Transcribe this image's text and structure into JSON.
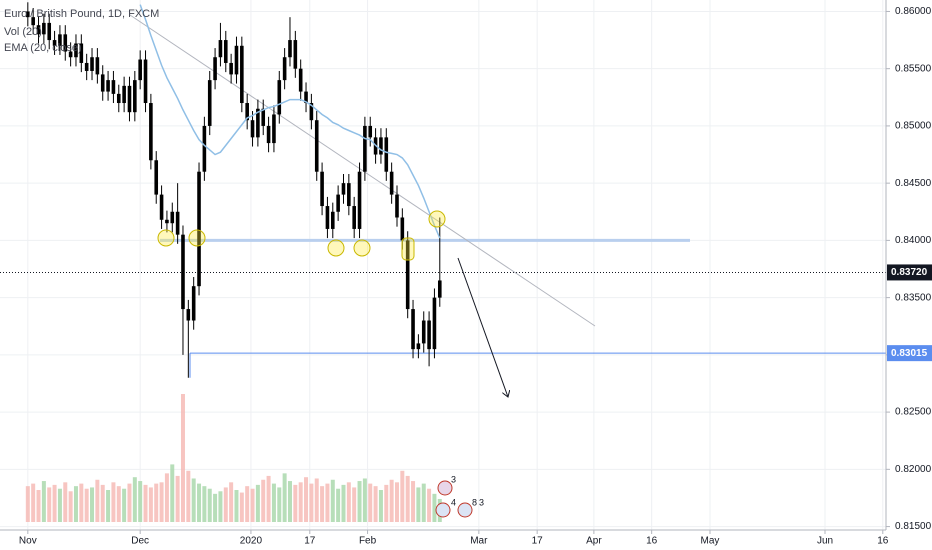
{
  "chart_data": {
    "type": "candlestick",
    "title": "Euro / British Pound, 1D, FXCM",
    "indicators": [
      "Vol (20)",
      "EMA (20, close)"
    ],
    "open": [
      0.86,
      0.8595,
      0.8588,
      0.858,
      0.859,
      0.8575,
      0.857,
      0.858,
      0.8565,
      0.856,
      0.8572,
      0.8555,
      0.8548,
      0.856,
      0.8545,
      0.853,
      0.854,
      0.8528,
      0.852,
      0.8535,
      0.8512,
      0.854,
      0.8558,
      0.852,
      0.847,
      0.844,
      0.8418,
      0.8415,
      0.8425,
      0.8405,
      0.834,
      0.833,
      0.836,
      0.846,
      0.85,
      0.854,
      0.856,
      0.8575,
      0.8555,
      0.8545,
      0.857,
      0.852,
      0.8505,
      0.849,
      0.8515,
      0.85,
      0.8485,
      0.851,
      0.854,
      0.856,
      0.8575,
      0.855,
      0.853,
      0.852,
      0.8505,
      0.846,
      0.843,
      0.841,
      0.8425,
      0.844,
      0.845,
      0.843,
      0.841,
      0.846,
      0.85,
      0.849,
      0.8475,
      0.849,
      0.846,
      0.844,
      0.842,
      0.84,
      0.834,
      0.8305,
      0.831,
      0.833,
      0.8305,
      0.835
    ],
    "high": [
      0.8608,
      0.8603,
      0.8596,
      0.8598,
      0.8598,
      0.8583,
      0.8588,
      0.8588,
      0.8573,
      0.858,
      0.858,
      0.8563,
      0.8568,
      0.8568,
      0.8553,
      0.8548,
      0.8548,
      0.8536,
      0.8543,
      0.8543,
      0.8548,
      0.8566,
      0.8566,
      0.8528,
      0.8478,
      0.8448,
      0.8426,
      0.8433,
      0.845,
      0.8413,
      0.8348,
      0.8368,
      0.8468,
      0.8508,
      0.8548,
      0.8568,
      0.859,
      0.8583,
      0.8563,
      0.8578,
      0.8578,
      0.8528,
      0.8513,
      0.8523,
      0.8523,
      0.8508,
      0.8518,
      0.8548,
      0.8568,
      0.8595,
      0.8583,
      0.8558,
      0.8538,
      0.8528,
      0.8513,
      0.8468,
      0.8438,
      0.8433,
      0.8448,
      0.8458,
      0.8458,
      0.8438,
      0.8468,
      0.8508,
      0.8508,
      0.8498,
      0.8498,
      0.8498,
      0.8468,
      0.8448,
      0.8428,
      0.8408,
      0.8348,
      0.8318,
      0.8338,
      0.8338,
      0.8358,
      0.842
    ],
    "low": [
      0.8587,
      0.858,
      0.8572,
      0.8572,
      0.8567,
      0.8562,
      0.8562,
      0.8557,
      0.8552,
      0.8552,
      0.8547,
      0.854,
      0.854,
      0.8537,
      0.8522,
      0.8522,
      0.852,
      0.8512,
      0.8512,
      0.8504,
      0.8504,
      0.8532,
      0.8512,
      0.8462,
      0.8432,
      0.841,
      0.8407,
      0.8407,
      0.8397,
      0.83,
      0.828,
      0.8322,
      0.8352,
      0.8452,
      0.8492,
      0.8532,
      0.8552,
      0.8547,
      0.8537,
      0.8537,
      0.8512,
      0.8497,
      0.8482,
      0.8482,
      0.8492,
      0.8477,
      0.8477,
      0.8502,
      0.8532,
      0.8552,
      0.8542,
      0.8522,
      0.8512,
      0.8497,
      0.8452,
      0.8422,
      0.8402,
      0.8402,
      0.8417,
      0.8432,
      0.8422,
      0.8402,
      0.8402,
      0.8452,
      0.8482,
      0.8467,
      0.8467,
      0.8452,
      0.8432,
      0.8412,
      0.8392,
      0.8332,
      0.8297,
      0.8297,
      0.8302,
      0.829,
      0.8297,
      0.8342
    ],
    "close": [
      0.8595,
      0.8588,
      0.858,
      0.859,
      0.8575,
      0.857,
      0.858,
      0.8565,
      0.856,
      0.8572,
      0.8555,
      0.8548,
      0.856,
      0.8545,
      0.853,
      0.854,
      0.8528,
      0.852,
      0.8535,
      0.8512,
      0.854,
      0.8558,
      0.852,
      0.847,
      0.844,
      0.8418,
      0.8415,
      0.8425,
      0.8405,
      0.834,
      0.833,
      0.836,
      0.846,
      0.85,
      0.854,
      0.856,
      0.8575,
      0.8555,
      0.8545,
      0.857,
      0.852,
      0.8505,
      0.849,
      0.8515,
      0.85,
      0.8485,
      0.851,
      0.854,
      0.856,
      0.8575,
      0.855,
      0.853,
      0.852,
      0.8505,
      0.846,
      0.843,
      0.841,
      0.8425,
      0.844,
      0.845,
      0.843,
      0.841,
      0.846,
      0.85,
      0.849,
      0.8475,
      0.849,
      0.846,
      0.844,
      0.842,
      0.84,
      0.834,
      0.8305,
      0.831,
      0.833,
      0.8305,
      0.835,
      0.8365
    ],
    "up_color": "#000000",
    "down_color": "#000000",
    "volume": {
      "values": [
        28,
        30,
        25,
        32,
        27,
        29,
        26,
        31,
        24,
        28,
        30,
        26,
        27,
        33,
        29,
        25,
        31,
        28,
        26,
        30,
        35,
        32,
        29,
        27,
        30,
        31,
        38,
        45,
        36,
        100,
        40,
        34,
        30,
        28,
        26,
        22,
        24,
        27,
        31,
        25,
        23,
        28,
        26,
        29,
        33,
        36,
        30,
        27,
        38,
        32,
        29,
        31,
        35,
        30,
        34,
        28,
        30,
        33,
        26,
        29,
        31,
        27,
        32,
        34,
        30,
        28,
        25,
        29,
        33,
        31,
        40,
        36,
        32,
        27,
        30,
        26,
        22,
        18
      ],
      "ylim": [
        0,
        100
      ],
      "up_color": "#a5d6a7",
      "down_color": "#f5b7b1"
    },
    "ema": {
      "color": "#90bfe6",
      "values": [
        null,
        null,
        null,
        null,
        null,
        null,
        null,
        null,
        null,
        null,
        null,
        null,
        null,
        null,
        null,
        null,
        null,
        null,
        null,
        null,
        null,
        0.8606,
        0.8593,
        0.8579,
        0.8566,
        0.8553,
        0.8542,
        0.8533,
        0.8524,
        0.8514,
        0.8505,
        0.8496,
        0.8488,
        0.8483,
        0.8479,
        0.8475,
        0.8477,
        0.8483,
        0.8489,
        0.8495,
        0.8501,
        0.8507,
        0.8509,
        0.8512,
        0.8514,
        0.8516,
        0.8517,
        0.8519,
        0.8521,
        0.8523,
        0.8523,
        0.8523,
        0.8521,
        0.8518,
        0.8514,
        0.851,
        0.8507,
        0.8503,
        0.8501,
        0.8498,
        0.8496,
        0.8494,
        0.8492,
        0.8489,
        0.8488,
        0.8483,
        0.8479,
        0.8477,
        0.8476,
        0.8475,
        0.8472,
        0.8466,
        0.8457,
        0.8448,
        0.8437,
        0.8425,
        0.8413,
        0.8402
      ]
    },
    "xlim": [
      -5.2,
      160.4
    ],
    "xticks": [
      {
        "value": 0,
        "label": "Nov"
      },
      {
        "value": 21,
        "label": "Dec"
      },
      {
        "value": 41.7,
        "label": "2020"
      },
      {
        "value": 52.7,
        "label": "17"
      },
      {
        "value": 63.5,
        "label": "Feb"
      },
      {
        "value": 84.3,
        "label": "Mar"
      },
      {
        "value": 95.2,
        "label": "17"
      },
      {
        "value": 105.8,
        "label": "Apr"
      },
      {
        "value": 116.6,
        "label": "16"
      },
      {
        "value": 127.5,
        "label": "May"
      },
      {
        "value": 149,
        "label": "Jun"
      },
      {
        "value": 159.8,
        "label": "16"
      }
    ],
    "ylim": [
      0.8147,
      0.861
    ],
    "yticks": [
      {
        "value": 0.86,
        "label": "0.86000"
      },
      {
        "value": 0.855,
        "label": "0.85500"
      },
      {
        "value": 0.85,
        "label": "0.85000"
      },
      {
        "value": 0.845,
        "label": "0.84500"
      },
      {
        "value": 0.84,
        "label": "0.84000"
      },
      {
        "value": 0.835,
        "label": "0.83500"
      },
      {
        "value": 0.83,
        "label": "0.83000"
      },
      {
        "value": 0.825,
        "label": "0.82500"
      },
      {
        "value": 0.82,
        "label": "0.82000"
      },
      {
        "value": 0.815,
        "label": "0.81500"
      }
    ],
    "grid": true,
    "support_level": {
      "value": 0.84,
      "color": "#b9cfee"
    },
    "price_lines": [
      {
        "value": 0.8372,
        "label": "0.83720",
        "color": "#131722",
        "style": "dotted"
      },
      {
        "value": 0.83015,
        "label": "0.83015",
        "color": "#5b8def",
        "style": "solid"
      }
    ],
    "event_badges": [
      "3",
      "4",
      "8",
      "3"
    ]
  }
}
